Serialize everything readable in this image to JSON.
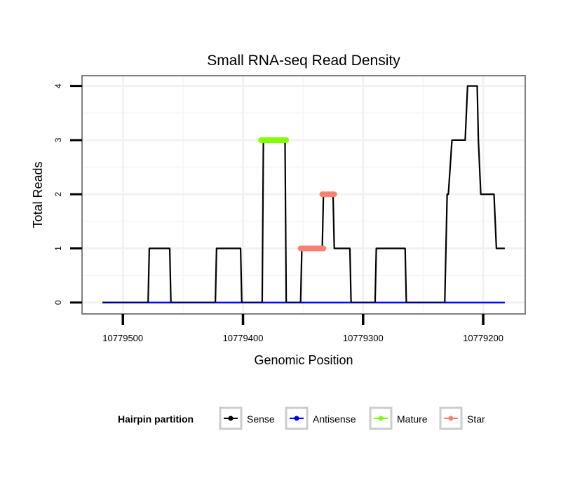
{
  "chart_data": {
    "type": "line",
    "title": "Small RNA-seq Read Density",
    "xlabel": "Genomic Position",
    "ylabel": "Total Reads",
    "xlim": [
      10779534,
      10779165
    ],
    "x_reversed": true,
    "ylim": [
      -0.21,
      4.19
    ],
    "x_ticks": [
      10779500,
      10779400,
      10779300,
      10779200
    ],
    "x_tick_labels": [
      "10779500",
      "10779400",
      "10779300",
      "10779200"
    ],
    "y_ticks": [
      0,
      1,
      2,
      3,
      4
    ],
    "y_tick_labels": [
      "0",
      "1",
      "2",
      "3",
      "4"
    ],
    "grid": true,
    "legend": {
      "title": "Hairpin partition",
      "placement": "bottom",
      "entries": [
        "Sense",
        "Antisense",
        "Mature",
        "Star"
      ]
    },
    "colors": {
      "Sense": "#000000",
      "Antisense": "#0000ff",
      "Mature": "#7fff00",
      "Star": "#fa8072"
    },
    "series": [
      {
        "name": "Antisense",
        "x": [
          10779517,
          10779182
        ],
        "y": [
          0,
          0
        ]
      },
      {
        "name": "Sense",
        "x": [
          10779517,
          10779479,
          10779478,
          10779461,
          10779460,
          10779423,
          10779422,
          10779402,
          10779401,
          10779384,
          10779383,
          10779365,
          10779364,
          10779352,
          10779351,
          10779334,
          10779333,
          10779325,
          10779324,
          10779311,
          10779310,
          10779290,
          10779289,
          10779265,
          10779264,
          10779232,
          10779230,
          10779229,
          10779226,
          10779215,
          10779213,
          10779205,
          10779204,
          10779202,
          10779191,
          10779189,
          10779182
        ],
        "y": [
          0,
          0,
          1,
          1,
          0,
          0,
          1,
          1,
          0,
          0,
          3,
          3,
          0,
          0,
          1,
          1,
          2,
          2,
          1,
          1,
          0,
          0,
          1,
          1,
          0,
          0,
          2,
          2,
          3,
          3,
          4,
          4,
          3,
          2,
          2,
          1,
          1
        ]
      },
      {
        "name": "Mature",
        "segments": [
          {
            "x": [
              10779385,
              10779364
            ],
            "y": 3
          }
        ]
      },
      {
        "name": "Star",
        "segments": [
          {
            "x": [
              10779352,
              10779333
            ],
            "y": 1
          },
          {
            "x": [
              10779334,
              10779324
            ],
            "y": 2
          }
        ]
      }
    ]
  }
}
